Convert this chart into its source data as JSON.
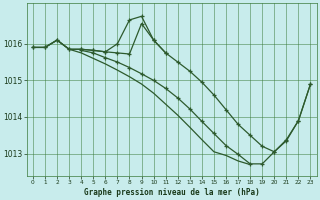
{
  "title": "Graphe pression niveau de la mer (hPa)",
  "bg_color": "#c8ecec",
  "grid_color": "#3a7a3a",
  "line_color": "#2d5a2d",
  "marker_color": "#2d5a2d",
  "text_color": "#1a3a1a",
  "ylim": [
    1012.4,
    1017.1
  ],
  "xlim": [
    -0.5,
    23.5
  ],
  "yticks": [
    1013,
    1014,
    1015,
    1016
  ],
  "xticks": [
    0,
    1,
    2,
    3,
    4,
    5,
    6,
    7,
    8,
    9,
    10,
    11,
    12,
    13,
    14,
    15,
    16,
    17,
    18,
    19,
    20,
    21,
    22,
    23
  ],
  "series": [
    {
      "x": [
        0,
        1,
        2,
        3,
        4,
        5,
        6,
        7,
        8,
        9,
        10,
        11,
        12,
        13,
        14,
        15,
        16,
        17,
        18,
        19,
        20,
        21,
        22,
        23
      ],
      "y": [
        1015.9,
        1015.9,
        1016.1,
        1015.85,
        1015.85,
        1015.82,
        1015.78,
        1015.75,
        1015.72,
        1016.55,
        1016.1,
        1015.75,
        1015.5,
        1015.25,
        1014.95,
        1014.6,
        1014.2,
        1013.8,
        1013.5,
        1013.2,
        1013.05,
        1013.35,
        1013.9,
        1014.9
      ],
      "has_markers": true,
      "lw": 0.9
    },
    {
      "x": [
        0,
        1,
        2,
        3,
        4,
        5,
        6,
        7,
        8,
        9,
        10,
        11
      ],
      "y": [
        1015.9,
        1015.9,
        1016.1,
        1015.85,
        1015.85,
        1015.82,
        1015.78,
        1016.0,
        1016.65,
        1016.75,
        1016.1,
        1015.75
      ],
      "has_markers": true,
      "lw": 0.9
    },
    {
      "x": [
        0,
        1,
        2,
        3,
        4,
        5,
        6,
        7,
        8,
        9,
        10,
        11,
        12,
        13,
        14,
        15,
        16,
        17,
        18
      ],
      "y": [
        1015.9,
        1015.9,
        1016.1,
        1015.85,
        1015.75,
        1015.6,
        1015.45,
        1015.28,
        1015.1,
        1014.9,
        1014.65,
        1014.35,
        1014.05,
        1013.72,
        1013.38,
        1013.05,
        1012.95,
        1012.8,
        1012.7
      ],
      "has_markers": false,
      "lw": 0.9
    },
    {
      "x": [
        4,
        5,
        6,
        7,
        8,
        9,
        10,
        11,
        12,
        13,
        14,
        15,
        16,
        17,
        18,
        19,
        20,
        21,
        22,
        23
      ],
      "y": [
        1015.82,
        1015.75,
        1015.62,
        1015.5,
        1015.35,
        1015.18,
        1015.0,
        1014.78,
        1014.52,
        1014.22,
        1013.88,
        1013.55,
        1013.22,
        1012.98,
        1012.72,
        1012.72,
        1013.05,
        1013.38,
        1013.9,
        1014.9
      ],
      "has_markers": true,
      "lw": 0.9
    }
  ]
}
